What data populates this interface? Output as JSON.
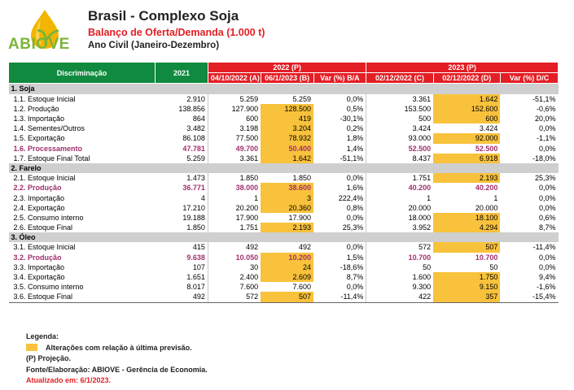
{
  "brand": {
    "logo_text": "ABIOVE"
  },
  "header": {
    "title": "Brasil - Complexo Soja",
    "subtitle": "Balanço de Oferta/Demanda (1.000 t)",
    "period": "Ano Civil (Janeiro-Dezembro)"
  },
  "table_head": {
    "discriminacao": "Discriminação",
    "y2021": "2021",
    "g2022": "2022 (P)",
    "g2023": "2023 (P)",
    "c1": "04/10/2022 (A)",
    "c2": "06/1/2023 (B)",
    "c3": "Var (%) B/A",
    "c4": "02/12/2022 (C)",
    "c5": "02/12/2022 (D)",
    "c6": "Var (%) D/C"
  },
  "sections": [
    {
      "name": "1. Soja",
      "rows": [
        {
          "label": "1.1. Estoque Inicial",
          "v": [
            "2.910",
            "5.259",
            "5.259",
            "0,0%",
            "3.361",
            "1.642",
            "-51,1%"
          ],
          "hl": [
            false,
            false,
            false,
            false,
            false,
            true,
            false
          ],
          "proc": false
        },
        {
          "label": "1.2. Produção",
          "v": [
            "138.856",
            "127.900",
            "128.500",
            "0,5%",
            "153.500",
            "152.600",
            "-0,6%"
          ],
          "hl": [
            false,
            false,
            true,
            false,
            false,
            true,
            false
          ],
          "proc": false
        },
        {
          "label": "1.3. Importação",
          "v": [
            "864",
            "600",
            "419",
            "-30,1%",
            "500",
            "600",
            "20,0%"
          ],
          "hl": [
            false,
            false,
            true,
            false,
            false,
            true,
            false
          ],
          "proc": false
        },
        {
          "label": "1.4. Sementes/Outros",
          "v": [
            "3.482",
            "3.198",
            "3.204",
            "0,2%",
            "3.424",
            "3.424",
            "0,0%"
          ],
          "hl": [
            false,
            false,
            true,
            false,
            false,
            false,
            false
          ],
          "proc": false
        },
        {
          "label": "1.5. Exportação",
          "v": [
            "86.108",
            "77.500",
            "78.932",
            "1,8%",
            "93.000",
            "92.000",
            "-1,1%"
          ],
          "hl": [
            false,
            false,
            true,
            false,
            false,
            true,
            false
          ],
          "proc": false
        },
        {
          "label": "1.6. Processamento",
          "v": [
            "47.781",
            "49.700",
            "50.400",
            "1,4%",
            "52.500",
            "52.500",
            "0,0%"
          ],
          "hl": [
            false,
            false,
            true,
            false,
            false,
            false,
            false
          ],
          "proc": true
        },
        {
          "label": "1.7. Estoque Final Total",
          "v": [
            "5.259",
            "3.361",
            "1.642",
            "-51,1%",
            "8.437",
            "6.918",
            "-18,0%"
          ],
          "hl": [
            false,
            false,
            true,
            false,
            false,
            true,
            false
          ],
          "proc": false
        }
      ]
    },
    {
      "name": "2. Farelo",
      "rows": [
        {
          "label": "2.1. Estoque Inicial",
          "v": [
            "1.473",
            "1.850",
            "1.850",
            "0,0%",
            "1.751",
            "2.193",
            "25,3%"
          ],
          "hl": [
            false,
            false,
            false,
            false,
            false,
            true,
            false
          ],
          "proc": false
        },
        {
          "label": "2.2. Produção",
          "v": [
            "36.771",
            "38.000",
            "38.600",
            "1,6%",
            "40.200",
            "40.200",
            "0,0%"
          ],
          "hl": [
            false,
            false,
            true,
            false,
            false,
            false,
            false
          ],
          "proc": true
        },
        {
          "label": "2.3. Importação",
          "v": [
            "4",
            "1",
            "3",
            "222,4%",
            "1",
            "1",
            "0,0%"
          ],
          "hl": [
            false,
            false,
            true,
            false,
            false,
            false,
            false
          ],
          "proc": false
        },
        {
          "label": "2.4. Exportação",
          "v": [
            "17.210",
            "20.200",
            "20.360",
            "0,8%",
            "20.000",
            "20.000",
            "0,0%"
          ],
          "hl": [
            false,
            false,
            true,
            false,
            false,
            false,
            false
          ],
          "proc": false
        },
        {
          "label": "2.5. Consumo interno",
          "v": [
            "19.188",
            "17.900",
            "17.900",
            "0,0%",
            "18.000",
            "18.100",
            "0,6%"
          ],
          "hl": [
            false,
            false,
            false,
            false,
            false,
            true,
            false
          ],
          "proc": false
        },
        {
          "label": "2.6. Estoque Final",
          "v": [
            "1.850",
            "1.751",
            "2.193",
            "25,3%",
            "3.952",
            "4.294",
            "8,7%"
          ],
          "hl": [
            false,
            false,
            true,
            false,
            false,
            true,
            false
          ],
          "proc": false
        }
      ]
    },
    {
      "name": "3. Óleo",
      "rows": [
        {
          "label": "3.1. Estoque Inicial",
          "v": [
            "415",
            "492",
            "492",
            "0,0%",
            "572",
            "507",
            "-11,4%"
          ],
          "hl": [
            false,
            false,
            false,
            false,
            false,
            true,
            false
          ],
          "proc": false
        },
        {
          "label": "3.2. Produção",
          "v": [
            "9.638",
            "10.050",
            "10.200",
            "1,5%",
            "10.700",
            "10.700",
            "0,0%"
          ],
          "hl": [
            false,
            false,
            true,
            false,
            false,
            false,
            false
          ],
          "proc": true
        },
        {
          "label": "3.3. Importação",
          "v": [
            "107",
            "30",
            "24",
            "-18,6%",
            "50",
            "50",
            "0,0%"
          ],
          "hl": [
            false,
            false,
            true,
            false,
            false,
            false,
            false
          ],
          "proc": false
        },
        {
          "label": "3.4. Exportação",
          "v": [
            "1.651",
            "2.400",
            "2.609",
            "8,7%",
            "1.600",
            "1.750",
            "9,4%"
          ],
          "hl": [
            false,
            false,
            true,
            false,
            false,
            true,
            false
          ],
          "proc": false
        },
        {
          "label": "3.5. Consumo interno",
          "v": [
            "8.017",
            "7.600",
            "7.600",
            "0,0%",
            "9.300",
            "9.150",
            "-1,6%"
          ],
          "hl": [
            false,
            false,
            false,
            false,
            false,
            true,
            false
          ],
          "proc": false
        },
        {
          "label": "3.6. Estoque Final",
          "v": [
            "492",
            "572",
            "507",
            "-11,4%",
            "422",
            "357",
            "-15,4%"
          ],
          "hl": [
            false,
            false,
            true,
            false,
            false,
            true,
            false
          ],
          "proc": false
        }
      ]
    }
  ],
  "legend": {
    "title": "Legenda:",
    "item": "Alterações com relação à última previsão.",
    "proj": "(P) Projeção.",
    "source": "Fonte/Elaboração: ABIOVE - Gerência de Economia.",
    "updated": "Atualizado em: 6/1/2023."
  },
  "colors": {
    "green": "#0f8a3e",
    "red": "#e31e24",
    "highlight": "#f9c23c",
    "section": "#cfcfcf",
    "processing": "#a0306e",
    "logo": "#7bb43a"
  }
}
